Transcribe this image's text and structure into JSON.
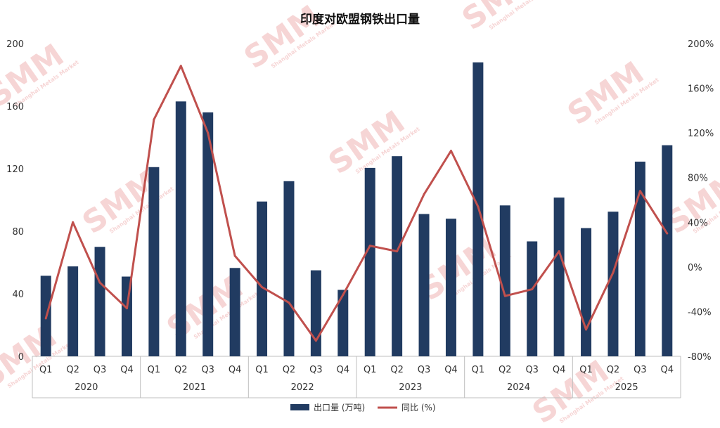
{
  "chart_data": {
    "type": "bar",
    "title": "印度对欧盟钢铁出口量",
    "quarters": [
      "Q1",
      "Q2",
      "Q3",
      "Q4",
      "Q1",
      "Q2",
      "Q3",
      "Q4",
      "Q1",
      "Q2",
      "Q3",
      "Q4",
      "Q1",
      "Q2",
      "Q3",
      "Q4",
      "Q1",
      "Q2",
      "Q3",
      "Q4",
      "Q1",
      "Q2",
      "Q3",
      "Q4"
    ],
    "years": [
      "2020",
      "2021",
      "2022",
      "2023",
      "2024",
      "2025"
    ],
    "y_left": {
      "min": 0,
      "max": 200,
      "ticks": [
        "0",
        "40",
        "80",
        "120",
        "160",
        "200"
      ]
    },
    "y_right": {
      "min": -80,
      "max": 200,
      "ticks": [
        "-80%",
        "-40%",
        "0%",
        "40%",
        "80%",
        "120%",
        "160%",
        "200%"
      ]
    },
    "series": [
      {
        "name": "出口量 (万吨)",
        "type": "bar",
        "axis": "left",
        "color": "#213b61",
        "values": [
          51.5,
          57.5,
          70,
          51,
          121,
          163,
          156,
          56.5,
          99,
          112,
          55,
          42.5,
          120.5,
          128,
          91,
          88,
          188,
          96.5,
          73.5,
          101.5,
          82,
          92.5,
          124.5,
          135
        ]
      },
      {
        "name": "同比 (%)",
        "type": "line",
        "axis": "right",
        "color": "#c0504d",
        "values": [
          -46,
          40,
          -14,
          -37,
          132,
          180,
          120,
          10,
          -18,
          -32,
          -66,
          -25,
          19,
          14,
          65,
          104,
          54,
          -26,
          -20,
          14,
          -56,
          -5,
          68,
          30
        ]
      }
    ],
    "legend": "bottom",
    "grid": false
  },
  "watermark": {
    "text": "SMM",
    "subtext": "Shanghai Metals Market"
  }
}
